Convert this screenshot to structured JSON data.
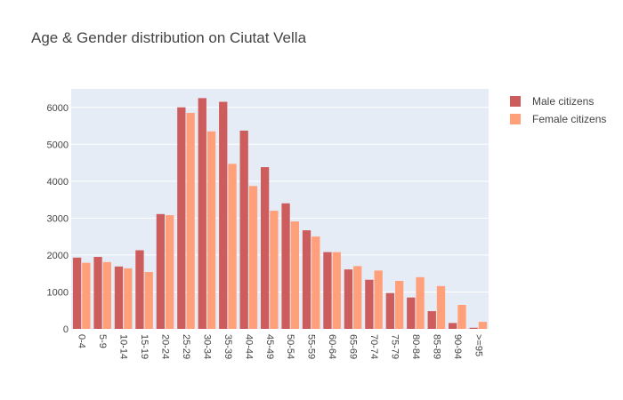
{
  "chart_data": {
    "type": "bar",
    "title": "Age & Gender distribution on Ciutat Vella",
    "xlabel": "",
    "ylabel": "",
    "categories": [
      "0-4",
      "5-9",
      "10-14",
      "15-19",
      "20-24",
      "25-29",
      "30-34",
      "35-39",
      "40-44",
      "45-49",
      "50-54",
      "55-59",
      "60-64",
      "65-69",
      "70-74",
      "75-79",
      "80-84",
      "85-89",
      "90-94",
      ">=95"
    ],
    "series": [
      {
        "name": "Male citizens",
        "color": "#cd5c5c",
        "values": [
          1930,
          1950,
          1690,
          2130,
          3110,
          6000,
          6250,
          6150,
          5370,
          4380,
          3400,
          2670,
          2080,
          1610,
          1330,
          970,
          850,
          480,
          160,
          30
        ]
      },
      {
        "name": "Female citizens",
        "color": "#ffa07a",
        "values": [
          1790,
          1810,
          1640,
          1540,
          3080,
          5850,
          5350,
          4470,
          3870,
          3200,
          2910,
          2500,
          2080,
          1700,
          1580,
          1300,
          1400,
          1160,
          650,
          190
        ]
      }
    ],
    "ylim": [
      0,
      6500
    ],
    "yticks": [
      0,
      1000,
      2000,
      3000,
      4000,
      5000,
      6000
    ],
    "grid": true,
    "legend_position": "top-right",
    "plot_bgcolor": "#e5ecf6"
  }
}
